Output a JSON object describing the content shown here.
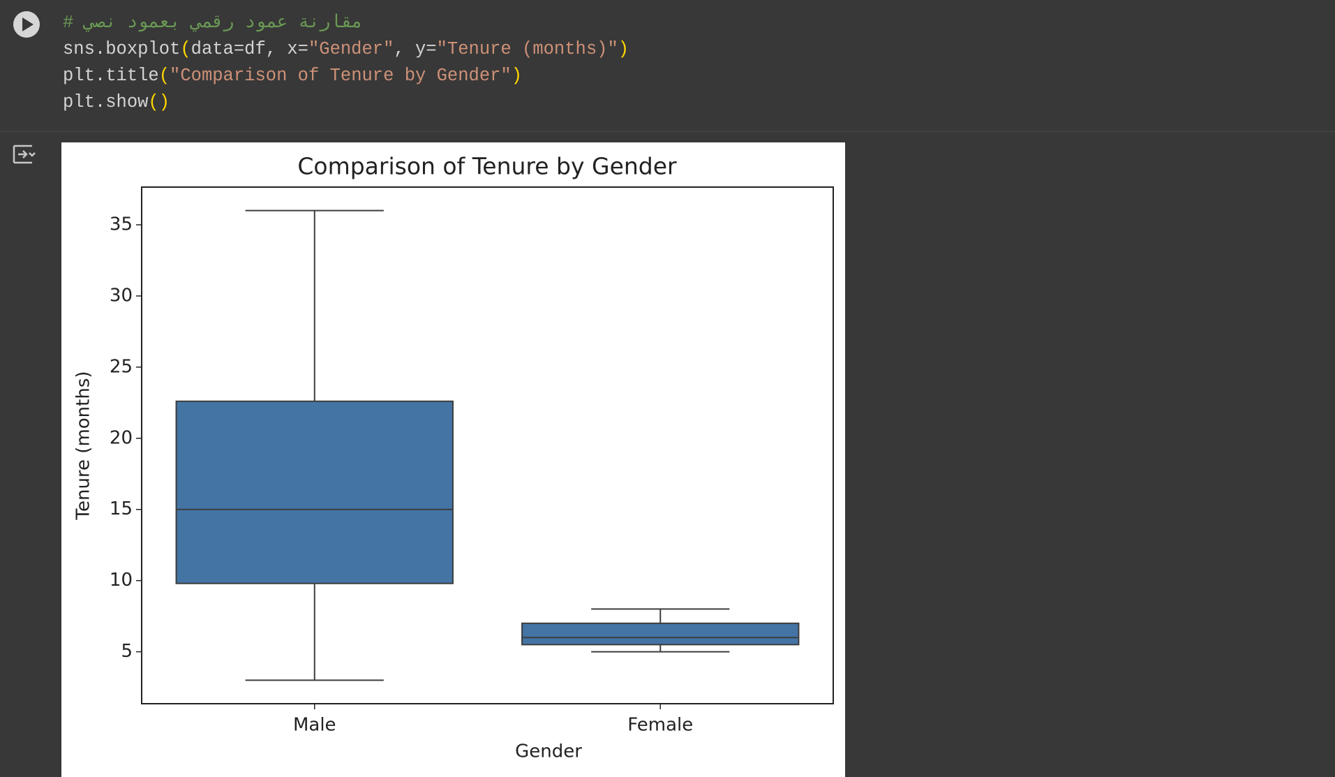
{
  "code": {
    "lines": [
      [
        {
          "text": "# مقارنة عمود رقمي بعمود نصي",
          "color": "#6a9955"
        }
      ],
      [
        {
          "text": "sns.boxplot",
          "color": "#d4d4d4"
        },
        {
          "text": "(",
          "color": "#ffd700"
        },
        {
          "text": "data=df, x=",
          "color": "#d4d4d4"
        },
        {
          "text": "\"Gender\"",
          "color": "#ce9178"
        },
        {
          "text": ", y=",
          "color": "#d4d4d4"
        },
        {
          "text": "\"Tenure (months)\"",
          "color": "#ce9178"
        },
        {
          "text": ")",
          "color": "#ffd700"
        }
      ],
      [
        {
          "text": "plt.title",
          "color": "#d4d4d4"
        },
        {
          "text": "(",
          "color": "#ffd700"
        },
        {
          "text": "\"Comparison of Tenure by Gender\"",
          "color": "#ce9178"
        },
        {
          "text": ")",
          "color": "#ffd700"
        }
      ],
      [
        {
          "text": "plt.show",
          "color": "#d4d4d4"
        },
        {
          "text": "()",
          "color": "#ffd700"
        }
      ]
    ]
  },
  "chart_data": {
    "type": "box",
    "title": "Comparison of Tenure by Gender",
    "x_label": "Gender",
    "y_label": "Tenure (months)",
    "categories": [
      "Male",
      "Female"
    ],
    "color": "#4374a4",
    "boxes": [
      {
        "whislo": 3,
        "q1": 9.8,
        "med": 15,
        "q3": 22.6,
        "whishi": 36
      },
      {
        "whislo": 5,
        "q1": 5.5,
        "med": 6,
        "q3": 7,
        "whishi": 8
      }
    ],
    "ylim": [
      1.35,
      37.65
    ],
    "yticks": [
      5,
      10,
      15,
      20,
      25,
      30,
      35
    ]
  }
}
